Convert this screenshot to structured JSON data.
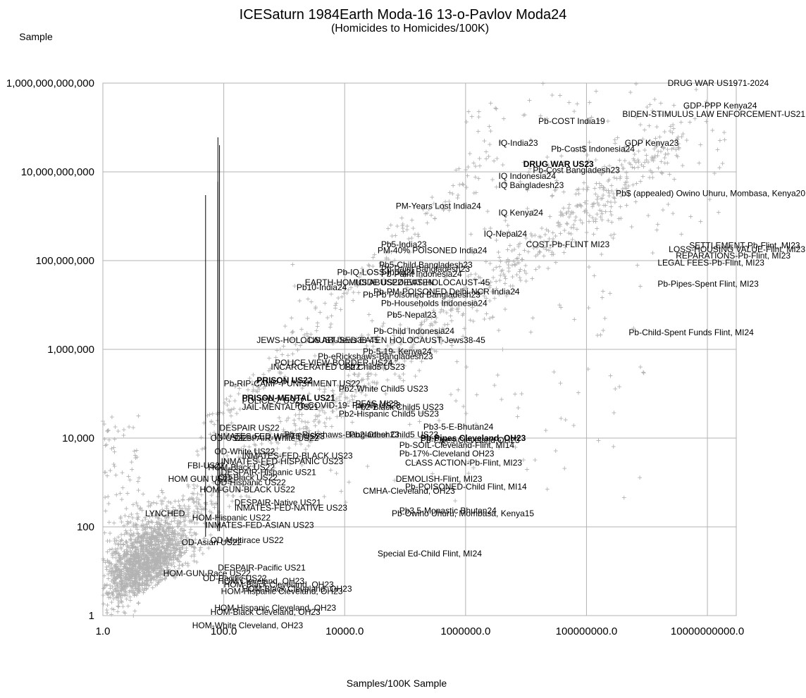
{
  "chart_data": {
    "type": "scatter",
    "title": "ICESaturn 1984Earth Moda-16 13-o-Pavlov Moda24",
    "subtitle": "(Homicides to Homicides/100K)",
    "xlabel": "Samples/100K Sample",
    "ylabel": "Sample",
    "x_scale": "log",
    "y_scale": "log",
    "xlim": [
      1,
      30000000000
    ],
    "ylim": [
      1,
      1000000000000
    ],
    "grid": true,
    "x_ticks": [
      {
        "value": 1,
        "label": "1.0"
      },
      {
        "value": 100,
        "label": "100.0"
      },
      {
        "value": 10000,
        "label": "10000.0"
      },
      {
        "value": 1000000,
        "label": "1000000.0"
      },
      {
        "value": 100000000,
        "label": "100000000.0"
      },
      {
        "value": 10000000000,
        "label": "10000000000.0"
      }
    ],
    "y_ticks": [
      {
        "value": 1,
        "label": "1"
      },
      {
        "value": 100,
        "label": "100"
      },
      {
        "value": 10000,
        "label": "10,000"
      },
      {
        "value": 1000000,
        "label": "1,000,000"
      },
      {
        "value": 100000000,
        "label": "100,000,000"
      },
      {
        "value": 10000000000,
        "label": "10,000,000,000"
      },
      {
        "value": 1000000000000,
        "label": "1,000,000,000,000"
      }
    ],
    "marker": "+",
    "marker_color": "#b3b3b3",
    "stems": [
      {
        "x": 50,
        "y_from": 60,
        "y_to": 3000000000
      },
      {
        "x": 80,
        "y_from": 80,
        "y_to": 60000000000
      },
      {
        "x": 85,
        "y_from": 80,
        "y_to": 40000000000
      },
      {
        "x": 80,
        "y_from": 100,
        "y_to": 6000000000
      }
    ],
    "annotations": [
      {
        "text": "DRUG WAR US1971-2024",
        "x": 2200000000,
        "y": 1000000000000
      },
      {
        "text": "GDP-PPP Kenya24",
        "x": 4000000000,
        "y": 310000000000
      },
      {
        "text": "BIDEN-STIMULUS LAW ENFORCEMENT-US21",
        "x": 1000000000,
        "y": 200000000000
      },
      {
        "text": "Pb-COST India19",
        "x": 16000000,
        "y": 140000000000
      },
      {
        "text": "IQ-India23",
        "x": 3500000,
        "y": 45000000000
      },
      {
        "text": "GDP Kenya23",
        "x": 430000000,
        "y": 45000000000
      },
      {
        "text": "Pb-Cost$ Indonesia24",
        "x": 26000000,
        "y": 33000000000
      },
      {
        "text": "DRUG WAR US23",
        "x": 9000000,
        "y": 15000000000,
        "bold": true
      },
      {
        "text": "Pb-Cost Bangladesh23",
        "x": 13000000,
        "y": 11000000000
      },
      {
        "text": "IQ Indonesia24",
        "x": 3500000,
        "y": 8000000000
      },
      {
        "text": "IQ Bangladesh23",
        "x": 3500000,
        "y": 5000000000
      },
      {
        "text": "PM-Years Lost India24",
        "x": 70000,
        "y": 1700000000
      },
      {
        "text": "IQ Kenya24",
        "x": 3500000,
        "y": 1200000000
      },
      {
        "text": "IQ-Nepal24",
        "x": 2000000,
        "y": 400000000
      },
      {
        "text": "SETTLEMENT-Pb-Flint, MI23",
        "x": 5000000000,
        "y": 220000000
      },
      {
        "text": "LOSS-HOUSING VALUE-Flint, MI23",
        "x": 3000000000,
        "y": 180000000
      },
      {
        "text": "REPARATIONS-Pb-Flint, MI23",
        "x": 3000000000,
        "y": 130000000
      },
      {
        "text": "COST-Pb-FLINT MI23",
        "x": 10000000,
        "y": 230000000
      },
      {
        "text": "LEGAL FEES-Pb-Flint, MI23",
        "x": 1500000000,
        "y": 90000000
      },
      {
        "text": "Pb5-India23",
        "x": 40000,
        "y": 230000000
      },
      {
        "text": "PM-40% POISONED India24",
        "x": 35000,
        "y": 170000000
      },
      {
        "text": "Pb5-Child Bangladesh23",
        "x": 37000,
        "y": 80000000
      },
      {
        "text": "Pb-Paint Bangladesh23",
        "x": 40000,
        "y": 65000000
      },
      {
        "text": "Pb-IQ-LOSS-India24",
        "x": 7500,
        "y": 55000000
      },
      {
        "text": "Pb-Paint Indonesia24",
        "x": 40000,
        "y": 50000000
      },
      {
        "text": "EARTH-HOMICIDE US22",
        "x": 2200,
        "y": 32000000
      },
      {
        "text": "US ABUSED-EATEN",
        "x": 15000,
        "y": 32000000
      },
      {
        "text": "JEWS-HOLOCAUST-45",
        "x": 80000,
        "y": 32000000
      },
      {
        "text": "Pb10-India24",
        "x": 1600,
        "y": 25000000
      },
      {
        "text": "Pb-PM-POISONED Delhi-NCR India24",
        "x": 30000,
        "y": 20000000
      },
      {
        "text": "Pb-Pb Poisoned Bangladesh23",
        "x": 20000,
        "y": 17000000
      },
      {
        "text": "Pb-Pipes-Spent Flint, MI23",
        "x": 1500000000,
        "y": 30000000
      },
      {
        "text": "Pb-Households Indonesia24",
        "x": 40000,
        "y": 11000000
      },
      {
        "text": "Pb5-Nepal23",
        "x": 50000,
        "y": 6000000
      },
      {
        "text": "Pb$ (appealed) Owino Uhuru, Mombasa, Kenya20",
        "x": 1400000000,
        "y": 3300000000
      },
      {
        "text": "Pb-Child-Spent Funds Flint, MI24",
        "x": 500000000,
        "y": 2400000
      },
      {
        "text": "Pb-Child Indonesia24",
        "x": 30000,
        "y": 2600000
      },
      {
        "text": "JEWS-HOLOCAUST-Jews38-45",
        "x": 350,
        "y": 1600000
      },
      {
        "text": "US ABUSED-EATEN HOLOCAUST-Jews38-45",
        "x": 2500,
        "y": 1600000
      },
      {
        "text": "Pb-5-19- Kenya24",
        "x": 20000,
        "y": 900000
      },
      {
        "text": "Pb-eRickshaws-Bangladesh23",
        "x": 3600,
        "y": 700000
      },
      {
        "text": "POLICE VIEW-BORDER-US24",
        "x": 700,
        "y": 500000
      },
      {
        "text": "INCARCERATED US22",
        "x": 600,
        "y": 400000
      },
      {
        "text": "Pb Child5 US23",
        "x": 10000,
        "y": 400000
      },
      {
        "text": "PRISON US22",
        "x": 350,
        "y": 200000,
        "bold": true
      },
      {
        "text": "Pb-RIP-CAMP-PUNISHMENT US22",
        "x": 100,
        "y": 170000
      },
      {
        "text": "Pb2-White Child5 US23",
        "x": 8000,
        "y": 130000
      },
      {
        "text": "PRISON-MENTAL US21",
        "x": 200,
        "y": 80000,
        "bold": true
      },
      {
        "text": "POLICE-Z US22",
        "x": 200,
        "y": 70000
      },
      {
        "text": "JAIL-MENTAL US21",
        "x": 200,
        "y": 50000
      },
      {
        "text": "Pb-COVID-19- Family US23",
        "x": 1500,
        "y": 55000
      },
      {
        "text": "PFAS MI23",
        "x": 15000,
        "y": 60000
      },
      {
        "text": "Pb2-Black Child5 US23",
        "x": 15000,
        "y": 50000
      },
      {
        "text": "Pb2-Hispanic Child5 US23",
        "x": 8000,
        "y": 35000
      },
      {
        "text": "DESPAIR US22",
        "x": 85,
        "y": 17000
      },
      {
        "text": "Pb-eRickshaws-Bangladesh23",
        "x": 1000,
        "y": 12000
      },
      {
        "text": "Pb2-Other Child5 US23",
        "x": 12000,
        "y": 12000
      },
      {
        "text": "Pb3-5-E-Bhutan24",
        "x": 200000,
        "y": 18000
      },
      {
        "text": "INMATES-FED-WHITE US23",
        "x": 70,
        "y": 11000
      },
      {
        "text": "OD-US22",
        "x": 60,
        "y": 10000
      },
      {
        "text": "DESPAIR-White US22",
        "x": 150,
        "y": 10000
      },
      {
        "text": "Pb-Pipes Cleveland, OH23",
        "x": 180000,
        "y": 10000,
        "bold": true
      },
      {
        "text": "Pb-Pipes-Cleveland OH23",
        "x": 180000,
        "y": 9000
      },
      {
        "text": "Pb-SOIL-Cleveland-Flint, MI14",
        "x": 80000,
        "y": 7000
      },
      {
        "text": "OD-White US22",
        "x": 70,
        "y": 5000
      },
      {
        "text": "Pb-17%-Cleveland OH23",
        "x": 80000,
        "y": 4500
      },
      {
        "text": "INMATES-FED-BLACK US23",
        "x": 200,
        "y": 4000
      },
      {
        "text": "INMATES-FED-HISPANIC US23",
        "x": 90,
        "y": 3000
      },
      {
        "text": "CLASS ACTION-Pb-Flint, MI23",
        "x": 100000,
        "y": 2800
      },
      {
        "text": "FBI-US22",
        "x": 25,
        "y": 2400
      },
      {
        "text": "HOM-Black US22",
        "x": 55,
        "y": 2200
      },
      {
        "text": "DESPAIR-Hispanic US21",
        "x": 90,
        "y": 1700
      },
      {
        "text": "HOM GUN US22",
        "x": 12,
        "y": 1200
      },
      {
        "text": "OD-Black US22",
        "x": 80,
        "y": 1300
      },
      {
        "text": "DEMOLISH-Flint, MI23",
        "x": 70000,
        "y": 1200
      },
      {
        "text": "OD-Hispanic US22",
        "x": 70,
        "y": 1000
      },
      {
        "text": "Pb-POISONED-Child Flint, MI14",
        "x": 100000,
        "y": 800
      },
      {
        "text": "HOM-GUN-BLACK US22",
        "x": 40,
        "y": 700
      },
      {
        "text": "CMHA-Cleveland, OH23",
        "x": 20000,
        "y": 650
      },
      {
        "text": "DESPAIR-Native US21",
        "x": 150,
        "y": 350
      },
      {
        "text": "INMATES-FED-NATIVE US23",
        "x": 150,
        "y": 270
      },
      {
        "text": "LYNCHED",
        "x": 5,
        "y": 200
      },
      {
        "text": "HOM-Hispanic US22",
        "x": 30,
        "y": 160
      },
      {
        "text": "Pb3.5-Monastic Bhutan24",
        "x": 80000,
        "y": 230
      },
      {
        "text": "Pb-Owino Uhuru, Mombasa, Kenya15",
        "x": 60000,
        "y": 200
      },
      {
        "text": "INMATES-FED-ASIAN US23",
        "x": 50,
        "y": 110
      },
      {
        "text": "OD-Multirace US22",
        "x": 60,
        "y": 50
      },
      {
        "text": "OD-Asian US22",
        "x": 20,
        "y": 45
      },
      {
        "text": "Special Ed-Child Flint, MI24",
        "x": 35000,
        "y": 25
      },
      {
        "text": "DESPAIR-Pacific US21",
        "x": 80,
        "y": 12
      },
      {
        "text": "HOM-GUN-Race US22",
        "x": 10,
        "y": 9
      },
      {
        "text": "OD-Pacific US22",
        "x": 45,
        "y": 7
      },
      {
        "text": "HOM Cleveland, OH23",
        "x": 80,
        "y": 6
      },
      {
        "text": "HOM-Black Cleveland, OH23",
        "x": 100,
        "y": 5
      },
      {
        "text": "HOM-Black Cleveland, OH23",
        "x": 200,
        "y": 4
      },
      {
        "text": "HOM-Hispanic Cleveland, OH23",
        "x": 90,
        "y": 3.5
      },
      {
        "text": "HOM-Hispanic Cleveland, OH23",
        "x": 70,
        "y": 1.5
      },
      {
        "text": "HOM-Black Cleveland, OH23",
        "x": 60,
        "y": 1.2
      },
      {
        "text": "HOM-White Cleveland, OH23",
        "x": 30,
        "y": 0.6
      }
    ]
  }
}
